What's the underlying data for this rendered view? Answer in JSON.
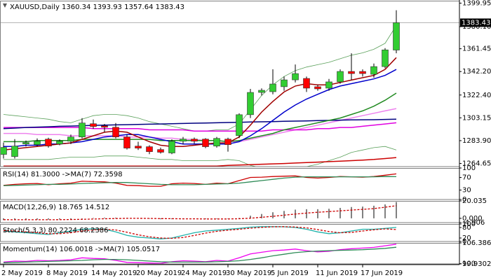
{
  "chart_data": [
    {
      "type": "candlestick",
      "title": "XAUUSD,Daily 1360.34 1393.93 1357.64 1383.43",
      "categories": [
        "2 May 2019",
        null,
        null,
        null,
        "8 May 2019",
        null,
        null,
        null,
        "14 May 2019",
        null,
        null,
        null,
        "20 May 2019",
        null,
        null,
        null,
        "24 May 2019",
        null,
        null,
        null,
        "30 May 2019",
        null,
        null,
        null,
        "5 Jun 2019",
        null,
        null,
        null,
        "11 Jun 2019",
        null,
        null,
        null,
        "17 Jun 2019",
        null,
        null,
        null
      ],
      "open": [
        1272.3,
        1270.5,
        1281.1,
        1280.5,
        1285.2,
        1281.1,
        1283.4,
        1287.0,
        1298.2,
        1296.4,
        1295.2,
        1287.0,
        1279.3,
        1278.8,
        1276.4,
        1273.5,
        1283.4,
        1285.2,
        1285.2,
        1279.3,
        1285.2,
        1288.2,
        1305.8,
        1324.6,
        1325.2,
        1329.4,
        1335.2,
        1336.4,
        1329.4,
        1328.2,
        1333.5,
        1342.3,
        1342.3,
        1339.9,
        1346.4,
        1360.34
      ],
      "high": [
        1282.3,
        1285.2,
        1284.0,
        1285.8,
        1286.4,
        1285.0,
        1289.0,
        1302.9,
        1301.7,
        1298.0,
        1298.8,
        1289.0,
        1283.0,
        1280.0,
        1278.0,
        1285.0,
        1287.0,
        1286.5,
        1286.0,
        1287.0,
        1286.4,
        1307.0,
        1327.6,
        1328.0,
        1344.1,
        1338.0,
        1348.2,
        1338.0,
        1331.0,
        1336.0,
        1344.0,
        1357.6,
        1344.0,
        1349.0,
        1362.0,
        1393.93
      ],
      "low": [
        1268.8,
        1268.8,
        1279.0,
        1279.3,
        1278.0,
        1280.0,
        1281.0,
        1285.8,
        1294.0,
        1291.0,
        1285.8,
        1276.4,
        1276.0,
        1272.5,
        1273.0,
        1272.5,
        1281.0,
        1281.5,
        1277.6,
        1278.0,
        1274.6,
        1286.0,
        1303.0,
        1322.0,
        1323.0,
        1326.0,
        1333.0,
        1325.0,
        1326.0,
        1326.0,
        1332.0,
        1335.0,
        1338.0,
        1337.0,
        1345.0,
        1357.64
      ],
      "close": [
        1278.2,
        1279.3,
        1282.3,
        1283.4,
        1279.3,
        1283.4,
        1287.0,
        1298.8,
        1295.8,
        1295.2,
        1287.0,
        1277.6,
        1277.6,
        1274.6,
        1274.1,
        1283.4,
        1285.2,
        1283.4,
        1278.8,
        1285.8,
        1280.5,
        1305.8,
        1324.6,
        1326.4,
        1331.7,
        1335.2,
        1340.5,
        1328.2,
        1327.6,
        1333.5,
        1342.3,
        1340.5,
        1340.5,
        1346.4,
        1360.5,
        1383.43
      ],
      "up_color": "#32cd32",
      "down_color": "#ff0000",
      "overlays": [
        {
          "color": "#5aa05a",
          "style": "thin",
          "values": [
            1306,
            1305,
            1304,
            1303,
            1302,
            1300,
            1299,
            1302,
            1305,
            1306,
            1306,
            1305,
            1303,
            1300,
            1298,
            1296,
            1294,
            1292,
            1292,
            1293,
            1293,
            1298,
            1310,
            1322,
            1331,
            1338,
            1343,
            1346,
            1348,
            1350,
            1353,
            1356,
            1358,
            1361,
            1366,
            1381
          ]
        },
        {
          "color": "#5aa05a",
          "style": "thin",
          "values": [
            1268,
            1268,
            1268,
            1268,
            1268,
            1269,
            1270,
            1270,
            1270,
            1271,
            1271,
            1271,
            1270,
            1269,
            1268,
            1268,
            1267,
            1267,
            1267,
            1267,
            1268,
            1267,
            1263,
            1261,
            1260,
            1260,
            1260,
            1262,
            1264,
            1267,
            1270,
            1274,
            1276,
            1278,
            1279,
            1276
          ]
        },
        {
          "color": "#cc0000",
          "style": "solid",
          "values": [
            1262.5,
            1262.5,
            1262.5,
            1262.5,
            1262.5,
            1262.5,
            1262.5,
            1262.5,
            1262.5,
            1262.5,
            1262.5,
            1262.5,
            1262.5,
            1262.5,
            1262.5,
            1262.5,
            1262.5,
            1262.5,
            1262.5,
            1262.5,
            1263,
            1263.3,
            1263.6,
            1264,
            1264.3,
            1264.6,
            1265,
            1265.4,
            1265.8,
            1266.2,
            1266.6,
            1267,
            1267.5,
            1268,
            1268.8,
            1269.6
          ]
        },
        {
          "color": "#ee82ee",
          "style": "solid",
          "values": [
            1290,
            1290,
            1290,
            1289,
            1289,
            1289,
            1288,
            1288,
            1288,
            1288,
            1288,
            1287,
            1287,
            1287,
            1286,
            1286,
            1285,
            1285,
            1284,
            1284,
            1283,
            1283,
            1285,
            1287,
            1289,
            1291,
            1293,
            1295,
            1297,
            1299,
            1301,
            1303,
            1305,
            1307,
            1309,
            1311
          ]
        },
        {
          "color": "#e000e0",
          "style": "solid",
          "values": [
            1295,
            1295,
            1295,
            1295,
            1295,
            1295,
            1295,
            1295,
            1294,
            1294,
            1294,
            1294,
            1294,
            1293,
            1293,
            1293,
            1293,
            1292,
            1292,
            1292,
            1292,
            1292,
            1292,
            1292,
            1293,
            1293,
            1293,
            1293,
            1294,
            1294,
            1295,
            1295,
            1296,
            1297,
            1298,
            1299
          ]
        },
        {
          "color": "#000080",
          "style": "solid",
          "values": [
            1294,
            1294.5,
            1295,
            1295.3,
            1295.6,
            1296,
            1296.2,
            1296.5,
            1296.8,
            1297,
            1297.2,
            1297.4,
            1297.6,
            1297.8,
            1298,
            1298.2,
            1298.4,
            1298.6,
            1298.8,
            1299,
            1299.2,
            1299.4,
            1299.6,
            1299.8,
            1300,
            1300.2,
            1300.4,
            1300.6,
            1300.8,
            1301,
            1301.2,
            1301.4,
            1301.5,
            1301.6,
            1301.8,
            1302
          ]
        },
        {
          "color": "#228b22",
          "style": "solid",
          "values": [
            1283,
            1283,
            1283,
            1284,
            1284,
            1284,
            1284,
            1285,
            1285,
            1285,
            1285,
            1285,
            1285,
            1285,
            1284,
            1284,
            1284,
            1284,
            1284,
            1284,
            1283,
            1284,
            1286,
            1288,
            1290,
            1293,
            1295,
            1297,
            1299,
            1301,
            1303,
            1306,
            1309,
            1313,
            1318,
            1324
          ]
        },
        {
          "color": "#0000cc",
          "style": "solid",
          "values": [
            1279,
            1279,
            1280,
            1280,
            1281,
            1281,
            1282,
            1283,
            1285,
            1287,
            1288,
            1289,
            1289,
            1287,
            1285,
            1283,
            1281,
            1281,
            1281,
            1281,
            1281,
            1283,
            1288,
            1294,
            1301,
            1308,
            1314,
            1319,
            1323,
            1327,
            1330,
            1332,
            1334,
            1336,
            1339,
            1344
          ]
        },
        {
          "color": "#a00000",
          "style": "solid",
          "values": [
            1276,
            1277,
            1278,
            1279,
            1280,
            1281,
            1282,
            1285,
            1288,
            1291,
            1292,
            1291,
            1287,
            1283,
            1280,
            1279,
            1279,
            1280,
            1281,
            1282,
            1282,
            1287,
            1297,
            1308,
            1317,
            1325,
            1330,
            1332,
            1331,
            1331,
            1333,
            1335,
            1337,
            1339,
            1344,
            1354
          ]
        }
      ],
      "current_price": 1383.43,
      "ylim": [
        1262,
        1402
      ],
      "yticks": [
        1399.95,
        {
          "value": 1380.1,
          "label": "1380.10"
        },
        1361.45,
        {
          "value": 1342.2,
          "label": "1342.20"
        },
        {
          "value": 1322.4,
          "label": "1322.40"
        },
        1303.15,
        {
          "value": 1283.9,
          "label": "1283.90"
        },
        1264.65
      ]
    },
    {
      "type": "line",
      "title": "RSI(14) 81.3000 ->MA(7) 72.3598",
      "series": [
        {
          "color": "#cc0000",
          "style": "solid",
          "values": [
            45,
            48,
            50,
            51,
            47,
            50,
            52,
            58,
            57,
            56,
            52,
            45,
            44,
            42,
            42,
            50,
            52,
            51,
            48,
            52,
            50,
            60,
            70,
            71,
            73,
            74,
            75,
            70,
            68,
            70,
            73,
            72,
            71,
            73,
            77,
            81.3
          ]
        },
        {
          "color": "#2e8b57",
          "style": "solid",
          "values": [
            44,
            45,
            46,
            47,
            48,
            48,
            49,
            51,
            52,
            53,
            54,
            54,
            52,
            50,
            48,
            47,
            47,
            47,
            48,
            49,
            50,
            52,
            56,
            60,
            64,
            68,
            71,
            72,
            72,
            72,
            72,
            72,
            72,
            72,
            73,
            72.3598
          ]
        }
      ],
      "ylim": [
        0,
        100
      ],
      "yticks": [
        100,
        70,
        30,
        0
      ]
    },
    {
      "type": "line",
      "title": "MACD(12,26,9) 18.765 14.512",
      "series": [
        {
          "color": "#808080",
          "style": "histogram",
          "values": [
            -2,
            -2,
            -1.5,
            -1.5,
            -1.5,
            -1.2,
            -1,
            0,
            0.5,
            0.8,
            0.8,
            0.5,
            0,
            -0.5,
            -1,
            -1,
            -1,
            -0.8,
            -0.8,
            -0.6,
            -0.6,
            0.5,
            3,
            5,
            7,
            8.5,
            10,
            10.5,
            10.5,
            11,
            12,
            13,
            13.5,
            14.5,
            16,
            18.765
          ]
        },
        {
          "color": "#cc0000",
          "style": "dashed",
          "values": [
            -1.5,
            -1.6,
            -1.6,
            -1.6,
            -1.6,
            -1.5,
            -1.4,
            -1.1,
            -0.8,
            -0.5,
            -0.2,
            0,
            0,
            -0.1,
            -0.3,
            -0.4,
            -0.6,
            -0.6,
            -0.7,
            -0.7,
            -0.7,
            -0.5,
            0.2,
            1.2,
            2.3,
            3.6,
            4.9,
            6,
            7,
            7.8,
            8.6,
            9.5,
            10.3,
            11.2,
            12.8,
            14.512
          ]
        }
      ],
      "ylim": [
        -4.906,
        20.035
      ],
      "yticks": [
        20.035,
        {
          "value": 0,
          "label": "0.000"
        },
        -4.906
      ]
    },
    {
      "type": "line",
      "title": "Stoch(5,3,3) 80.2224 68.2386",
      "series": [
        {
          "color": "#20b2aa",
          "style": "solid",
          "values": [
            60,
            55,
            50,
            45,
            40,
            50,
            60,
            70,
            72,
            70,
            55,
            35,
            25,
            20,
            15,
            20,
            35,
            50,
            60,
            65,
            70,
            75,
            82,
            85,
            85,
            84,
            80,
            70,
            55,
            45,
            50,
            60,
            70,
            70,
            75,
            80.2224
          ]
        },
        {
          "color": "#cc0000",
          "style": "dashed",
          "values": [
            62,
            60,
            55,
            50,
            45,
            45,
            50,
            60,
            67,
            70,
            66,
            53,
            38,
            27,
            20,
            18,
            23,
            35,
            48,
            58,
            65,
            70,
            76,
            81,
            84,
            85,
            83,
            78,
            68,
            57,
            50,
            52,
            60,
            67,
            72,
            68.2386
          ]
        }
      ],
      "ylim": [
        0,
        100
      ],
      "yticks": [
        100,
        80,
        20,
        0
      ]
    },
    {
      "type": "line",
      "title": "Momentum(14) 106.0018 ->MA(7) 105.0517",
      "series": [
        {
          "color": "#ee00ee",
          "style": "solid",
          "values": [
            100.5,
            100.8,
            100.7,
            101,
            100.9,
            101,
            101.2,
            101.8,
            101.6,
            101.5,
            101,
            100.4,
            100.3,
            100.2,
            100.1,
            100.6,
            100.9,
            100.8,
            100.6,
            101,
            100.8,
            101.8,
            103,
            103.5,
            104,
            104.2,
            104.5,
            104,
            103.6,
            103.8,
            104.3,
            104.6,
            104.8,
            105,
            105.5,
            106.0018
          ]
        },
        {
          "color": "#2e8b57",
          "style": "solid",
          "values": [
            100.3,
            100.4,
            100.5,
            100.6,
            100.7,
            100.8,
            100.9,
            101,
            101.2,
            101.3,
            101.3,
            101.2,
            101,
            100.8,
            100.6,
            100.5,
            100.5,
            100.5,
            100.5,
            100.6,
            100.7,
            100.9,
            101.3,
            101.8,
            102.4,
            102.9,
            103.4,
            103.7,
            103.9,
            104,
            104.1,
            104.2,
            104.3,
            104.5,
            104.7,
            105.0517
          ]
        }
      ],
      "ylim": [
        99.9302,
        106.3862
      ],
      "yticks": [
        106.3862,
        100,
        99.9302
      ]
    }
  ]
}
